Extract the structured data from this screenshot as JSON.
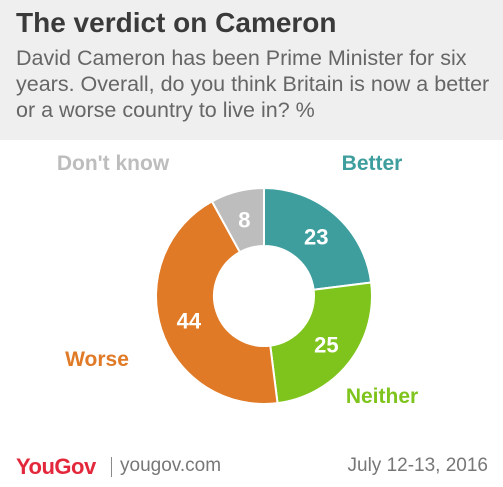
{
  "header": {
    "title": "The verdict on Cameron",
    "subtitle": "David Cameron has been Prime Minister for six years. Overall, do you think Britain is now a better or a worse country to live in? %"
  },
  "chart_data": {
    "type": "pie",
    "style": "donut",
    "categories": [
      "Better",
      "Neither",
      "Worse",
      "Don't know"
    ],
    "values": [
      23,
      25,
      44,
      8
    ],
    "colors": [
      "#3e9e9e",
      "#7fc41c",
      "#e07a26",
      "#bdbdbd"
    ],
    "title": "The verdict on Cameron",
    "unit": "%",
    "legend": "labels around donut"
  },
  "footer": {
    "brand": "YouGov",
    "website": "yougov.com",
    "date": "July 12-13, 2016"
  }
}
